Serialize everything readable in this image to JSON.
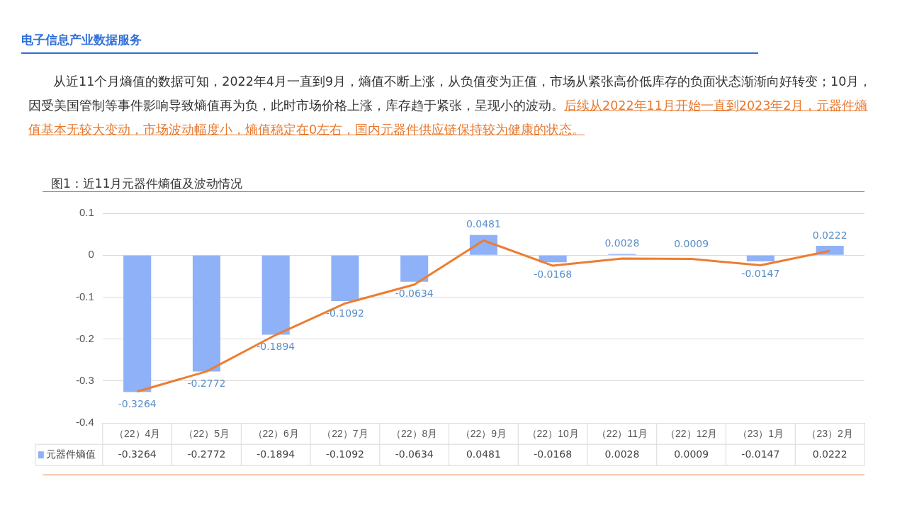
{
  "chart_data": {
    "type": "bar",
    "title": "图1：近11月元器件熵值及波动情况",
    "annotations": [
      "电子信息产业数据服务",
      "从近11个月熵值的数据可知，2022年4月一直到9月，熵值不断上涨，从负值变为正值，市场从紧张高价低库存的负面状态渐渐向好转变；10月，因受美国管制等事件影响导致熵值再为负，此时市场价格上涨，库存趋于紧张，呈现小的波动。",
      "后续从2022年11月开始一直到2023年2月，元器件熵值基本无较大变动，市场波动幅度小，熵值稳定在0左右，国内元器件供应链保持较为健康的状态。"
    ],
    "categories": [
      "（22）4月",
      "（22）5月",
      "（22）6月",
      "（22）7月",
      "（22）8月",
      "（22）9月",
      "（22）10月",
      "（22）11月",
      "（22）12月",
      "（23）1月",
      "（23）2月"
    ],
    "series": [
      {
        "name": "元器件熵值",
        "color": "#8fb1f7",
        "values": [
          -0.3264,
          -0.2772,
          -0.1894,
          -0.1092,
          -0.0634,
          0.0481,
          -0.0168,
          0.0028,
          0.0009,
          -0.0147,
          0.0222
        ],
        "value_labels": [
          "-0.3264",
          "-0.2772",
          "-0.1894",
          "-0.1092",
          "-0.0634",
          "0.0481",
          "-0.0168",
          "0.0028",
          "0.0009",
          "-0.0147",
          "0.0222"
        ]
      },
      {
        "type": "line",
        "color": "#ed7d31",
        "marker": "none",
        "values": [
          -0.325,
          -0.277,
          -0.19,
          -0.115,
          -0.07,
          0.035,
          -0.025,
          -0.008,
          -0.009,
          -0.024,
          0.01
        ]
      }
    ],
    "ylim": [
      -0.4,
      0.1
    ],
    "yticks": [
      -0.4,
      -0.3,
      -0.2,
      -0.1,
      0,
      0.1
    ],
    "grid": "y",
    "legend": "bottom left"
  }
}
